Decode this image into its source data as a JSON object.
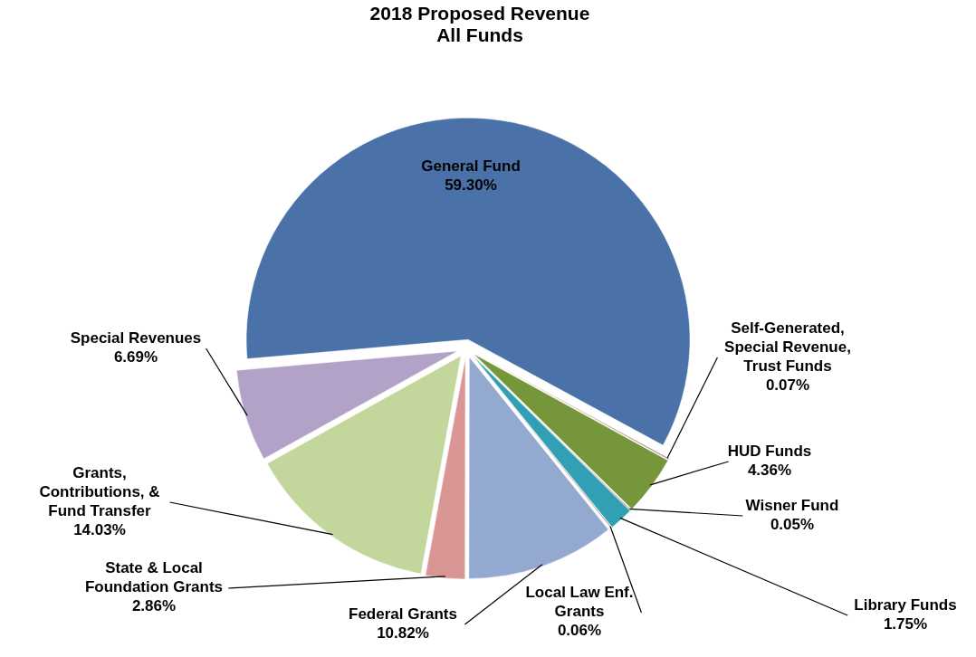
{
  "chart_data": {
    "type": "pie",
    "title": "2018 Proposed Revenue\nAll Funds",
    "categories": [
      "General Fund",
      "Self-Generated, Special Revenue, Trust Funds",
      "HUD Funds",
      "Wisner Fund",
      "Library Funds",
      "Local Law Enf. Grants",
      "Federal Grants",
      "State & Local Foundation Grants",
      "Grants, Contributions, & Fund Transfer",
      "Special Revenues"
    ],
    "values": [
      59.3,
      0.07,
      4.36,
      0.05,
      1.75,
      0.06,
      10.82,
      2.86,
      14.03,
      6.69
    ],
    "value_labels": [
      "59.30%",
      "0.07%",
      "4.36%",
      "0.05%",
      "1.75%",
      "0.06%",
      "10.82%",
      "2.86%",
      "14.03%",
      "6.69%"
    ],
    "colors": [
      "#4a72a8",
      "#7a3b1c",
      "#76963c",
      "#8b4a20",
      "#31a0b5",
      "#8b4a2a",
      "#94a9d0",
      "#d99694",
      "#c3d69b",
      "#b3a2c7"
    ]
  }
}
